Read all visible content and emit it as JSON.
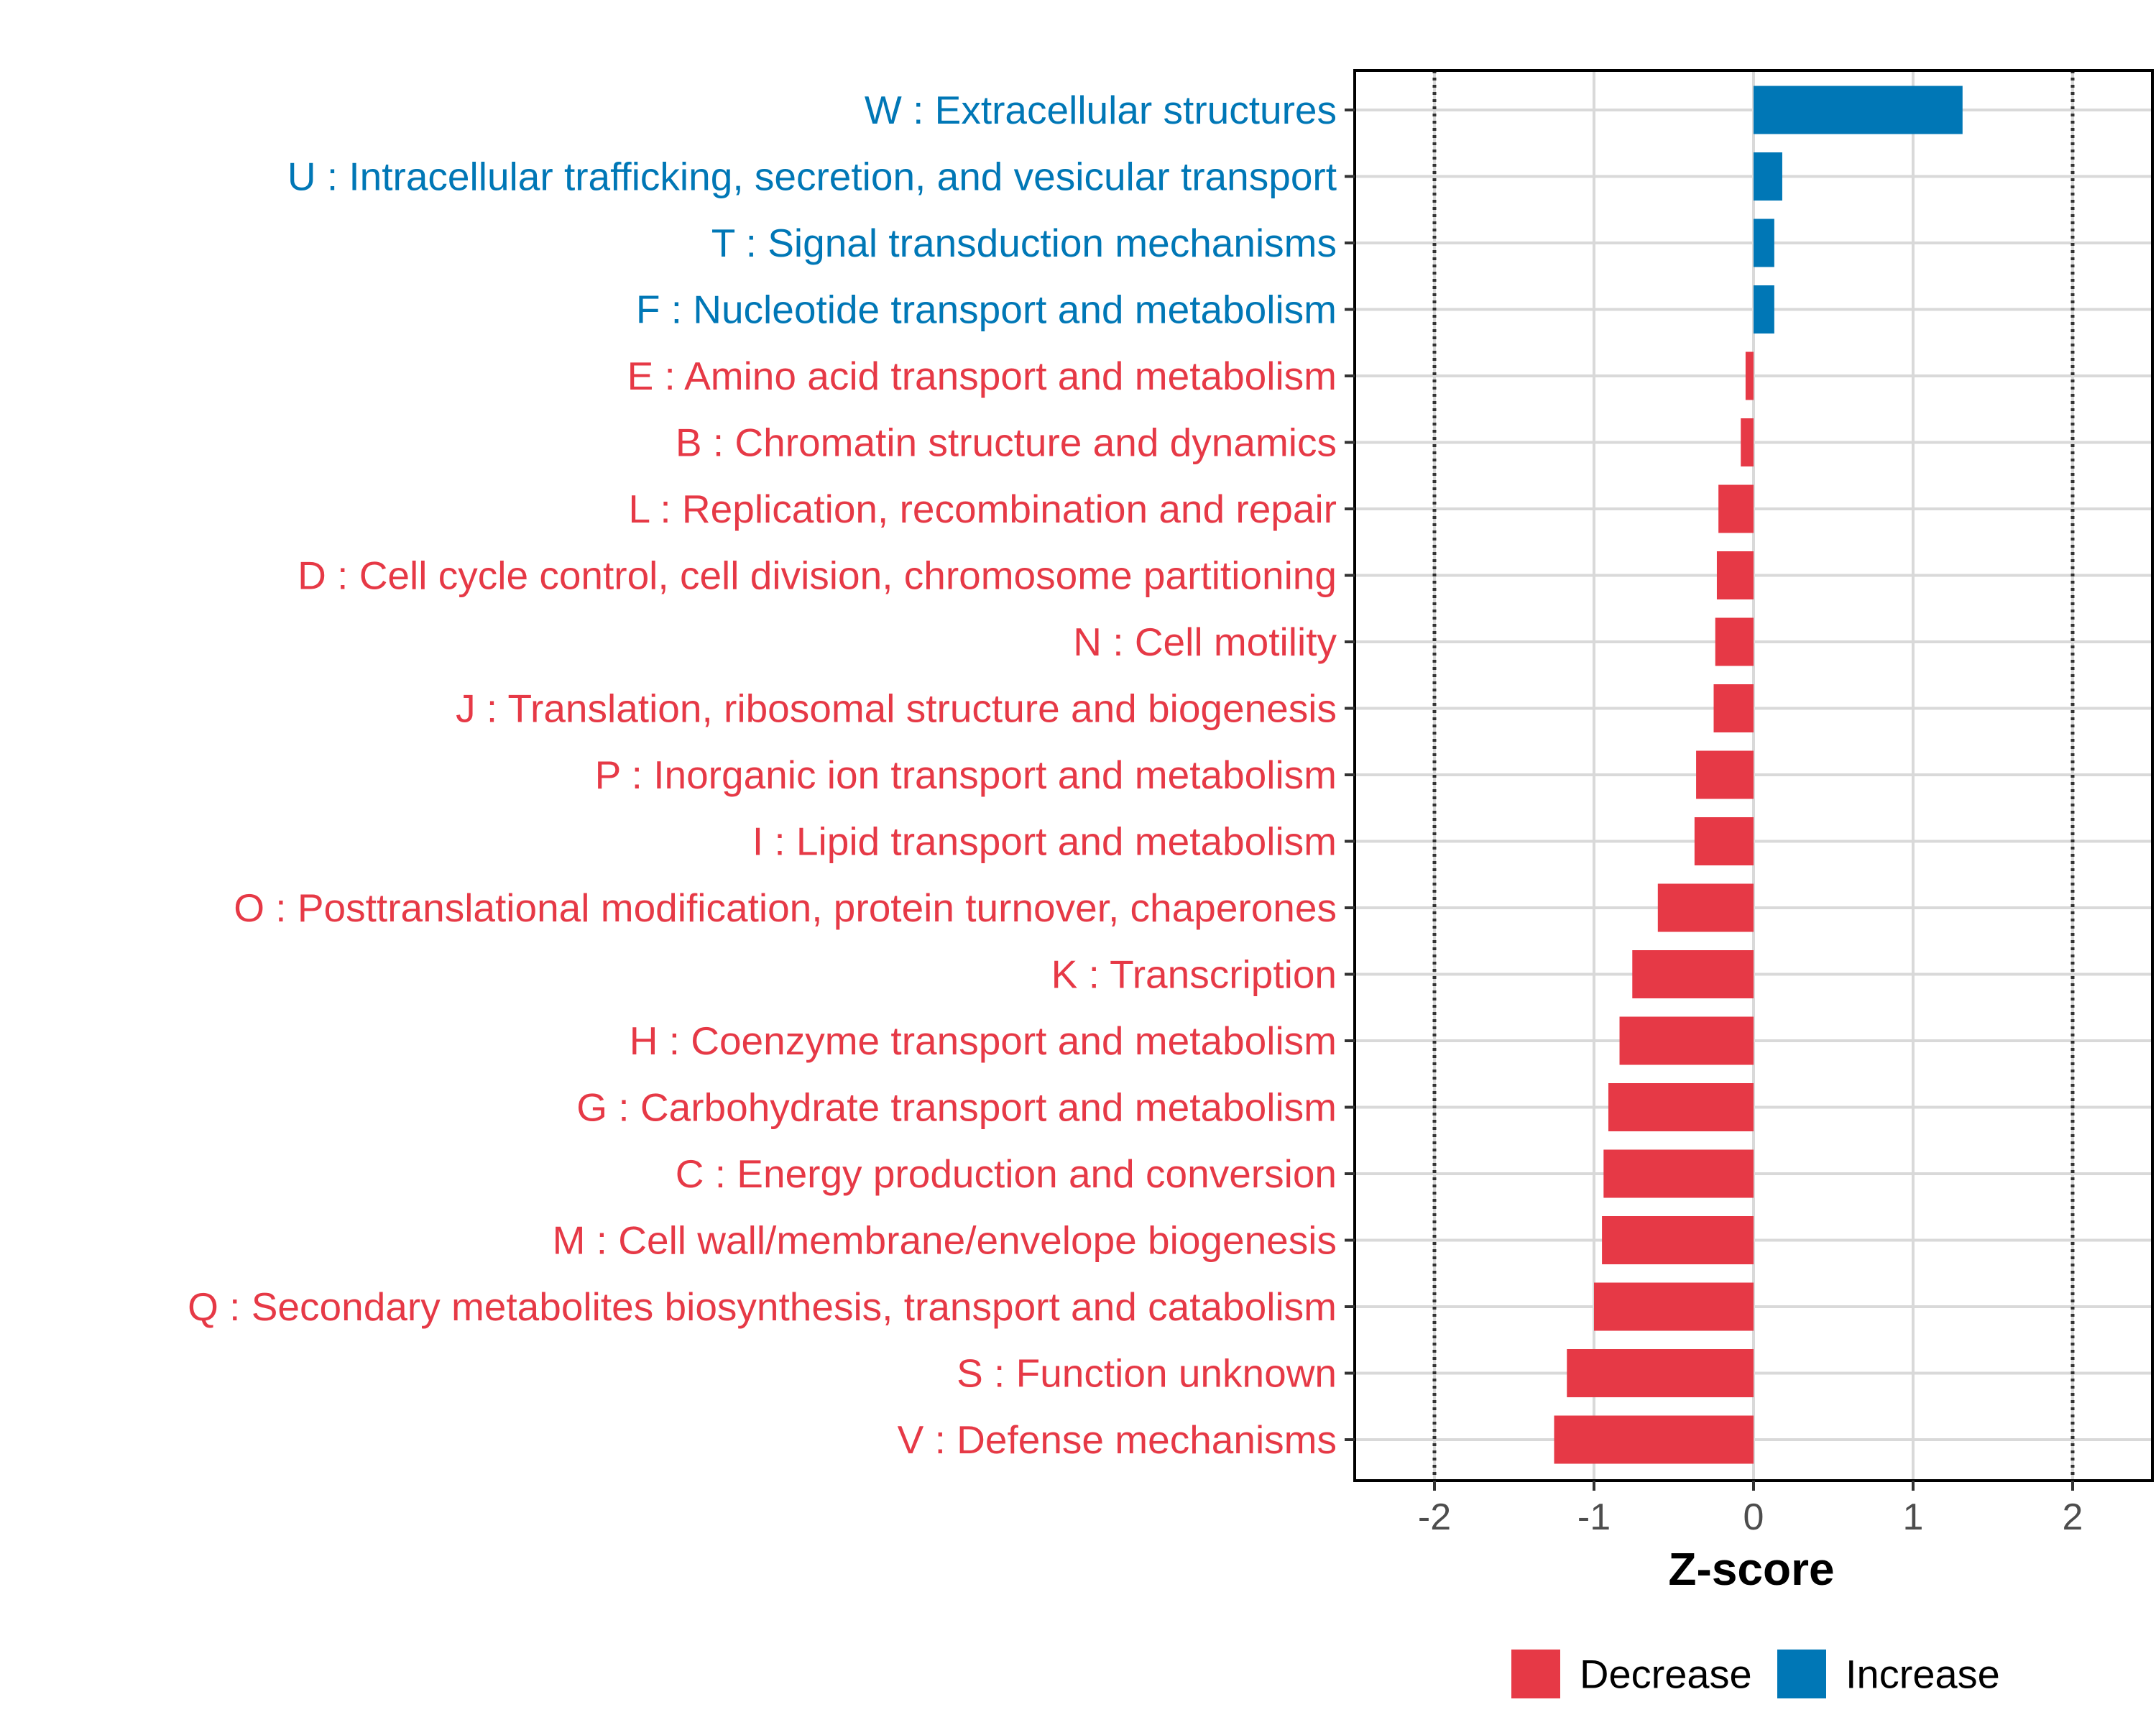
{
  "chart_data": {
    "type": "bar",
    "orientation": "horizontal",
    "xlabel": "Z-score",
    "xlim": [
      -2.5,
      2.5
    ],
    "xticks": [
      "-2",
      "-1",
      "0",
      "1",
      "2"
    ],
    "xtick_values": [
      -2,
      -1,
      0,
      1,
      2
    ],
    "threshold_lines": [
      -2,
      2
    ],
    "grid": true,
    "categories": [
      "W : Extracellular structures",
      "U : Intracellular trafficking, secretion, and vesicular transport",
      "T : Signal transduction mechanisms",
      "F : Nucleotide transport and metabolism",
      "E : Amino acid transport and metabolism",
      "B : Chromatin structure and dynamics",
      "L : Replication, recombination and repair",
      "D : Cell cycle control, cell division, chromosome partitioning",
      "N : Cell motility",
      "J : Translation, ribosomal structure and biogenesis",
      "P : Inorganic ion transport and metabolism",
      "I : Lipid transport and metabolism",
      "O : Posttranslational modification, protein turnover, chaperones",
      "K : Transcription",
      "H : Coenzyme transport and metabolism",
      "G : Carbohydrate transport and metabolism",
      "C : Energy production and conversion",
      "M : Cell wall/membrane/envelope biogenesis",
      "Q : Secondary metabolites biosynthesis, transport and catabolism",
      "S : Function unknown",
      "V : Defense mechanisms"
    ],
    "values": [
      1.31,
      0.18,
      0.13,
      0.13,
      -0.05,
      -0.08,
      -0.22,
      -0.23,
      -0.24,
      -0.25,
      -0.36,
      -0.37,
      -0.6,
      -0.76,
      -0.84,
      -0.91,
      -0.94,
      -0.95,
      -1.0,
      -1.17,
      -1.25
    ],
    "groups": [
      "Increase",
      "Increase",
      "Increase",
      "Increase",
      "Decrease",
      "Decrease",
      "Decrease",
      "Decrease",
      "Decrease",
      "Decrease",
      "Decrease",
      "Decrease",
      "Decrease",
      "Decrease",
      "Decrease",
      "Decrease",
      "Decrease",
      "Decrease",
      "Decrease",
      "Decrease",
      "Decrease"
    ],
    "legend": [
      {
        "label": "Decrease",
        "color": "#e63946"
      },
      {
        "label": "Increase",
        "color": "#0077b6"
      }
    ],
    "legend_position": "bottom-right"
  }
}
